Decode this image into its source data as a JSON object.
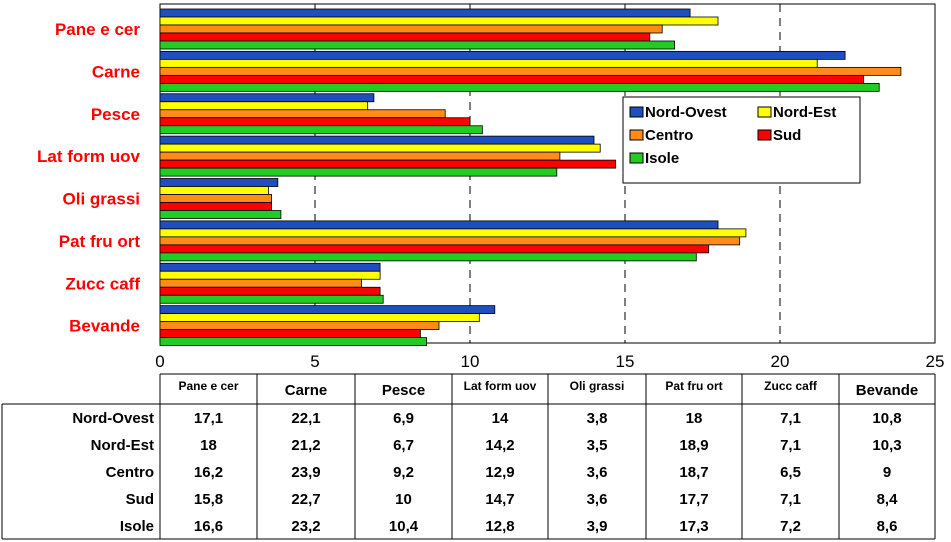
{
  "chart_data": {
    "type": "bar",
    "orientation": "horizontal",
    "categories": [
      "Pane e cer",
      "Carne",
      "Pesce",
      "Lat form uov",
      "Oli grassi",
      "Pat fru ort",
      "Zucc caff",
      "Bevande"
    ],
    "series": [
      {
        "name": "Nord-Ovest",
        "color": "#1f4fbf",
        "values": [
          17.1,
          22.1,
          6.9,
          14,
          3.8,
          18,
          7.1,
          10.8
        ],
        "labels": [
          "17,1",
          "22,1",
          "6,9",
          "14",
          "3,8",
          "18",
          "7,1",
          "10,8"
        ]
      },
      {
        "name": "Nord-Est",
        "color": "#ffff00",
        "values": [
          18,
          21.2,
          6.7,
          14.2,
          3.5,
          18.9,
          7.1,
          10.3
        ],
        "labels": [
          "18",
          "21,2",
          "6,7",
          "14,2",
          "3,5",
          "18,9",
          "7,1",
          "10,3"
        ]
      },
      {
        "name": "Centro",
        "color": "#ff8c1a",
        "values": [
          16.2,
          23.9,
          9.2,
          12.9,
          3.6,
          18.7,
          6.5,
          9
        ],
        "labels": [
          "16,2",
          "23,9",
          "9,2",
          "12,9",
          "3,6",
          "18,7",
          "6,5",
          "9"
        ]
      },
      {
        "name": "Sud",
        "color": "#ff0000",
        "values": [
          15.8,
          22.7,
          10,
          14.7,
          3.6,
          17.7,
          7.1,
          8.4
        ],
        "labels": [
          "15,8",
          "22,7",
          "10",
          "14,7",
          "3,6",
          "17,7",
          "7,1",
          "8,4"
        ]
      },
      {
        "name": "Isole",
        "color": "#22cc22",
        "values": [
          16.6,
          23.2,
          10.4,
          12.8,
          3.9,
          17.3,
          7.2,
          8.6
        ],
        "labels": [
          "16,6",
          "23,2",
          "10,4",
          "12,8",
          "3,9",
          "17,3",
          "7,2",
          "8,6"
        ]
      }
    ],
    "xlim": [
      0,
      25
    ],
    "ticks": [
      0,
      5,
      10,
      15,
      20,
      25
    ],
    "grid": "vertical dashed",
    "legend_position": "right",
    "data_table": true
  }
}
